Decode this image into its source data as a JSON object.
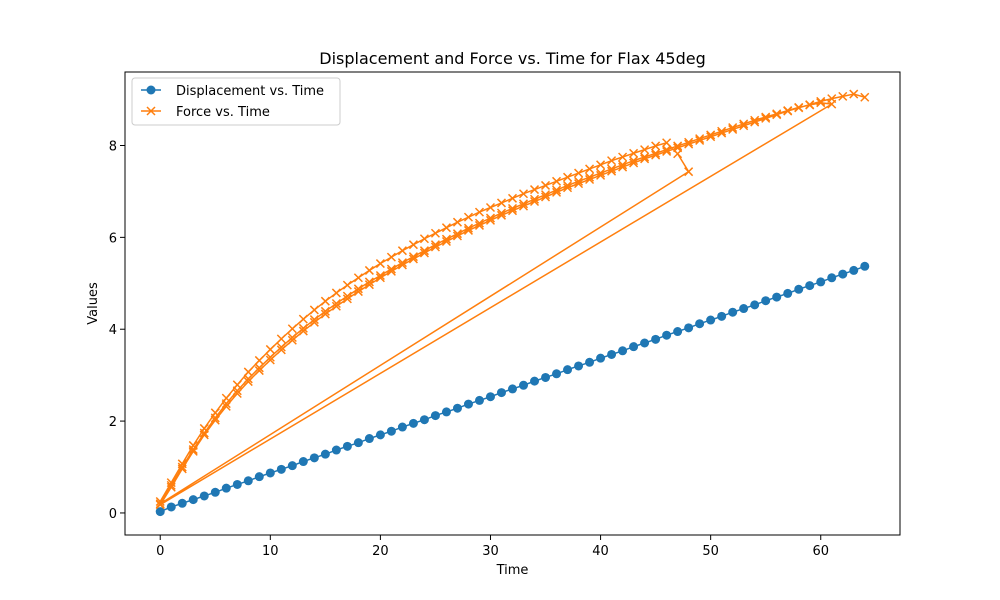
{
  "chart_data": {
    "type": "line",
    "title": "Displacement and Force vs. Time for Flax 45deg",
    "xlabel": "Time",
    "ylabel": "Values",
    "xlim": [
      -3.2,
      67.2
    ],
    "ylim": [
      -0.48,
      9.6
    ],
    "xticks": [
      0,
      10,
      20,
      30,
      40,
      50,
      60
    ],
    "yticks": [
      0,
      2,
      4,
      6,
      8
    ],
    "grid": false,
    "legend_position": "top-left",
    "series": [
      {
        "name": "Displacement vs. Time",
        "color": "#1f77b4",
        "marker": "circle",
        "x": [
          0,
          1,
          2,
          3,
          4,
          5,
          6,
          7,
          8,
          9,
          10,
          11,
          12,
          13,
          14,
          15,
          16,
          17,
          18,
          19,
          20,
          21,
          22,
          23,
          24,
          25,
          26,
          27,
          28,
          29,
          30,
          31,
          32,
          33,
          34,
          35,
          36,
          37,
          38,
          39,
          40,
          41,
          42,
          43,
          44,
          45,
          46,
          47,
          48,
          49,
          50,
          51,
          52,
          53,
          54,
          55,
          56,
          57,
          58,
          59,
          60,
          61,
          62,
          63,
          64
        ],
        "y": [
          0.03,
          0.13,
          0.21,
          0.29,
          0.37,
          0.45,
          0.54,
          0.62,
          0.7,
          0.79,
          0.87,
          0.95,
          1.03,
          1.12,
          1.2,
          1.28,
          1.37,
          1.45,
          1.53,
          1.62,
          1.7,
          1.78,
          1.87,
          1.95,
          2.03,
          2.12,
          2.2,
          2.28,
          2.37,
          2.45,
          2.53,
          2.62,
          2.7,
          2.78,
          2.87,
          2.95,
          3.03,
          3.12,
          3.2,
          3.28,
          3.37,
          3.45,
          3.53,
          3.62,
          3.7,
          3.78,
          3.87,
          3.95,
          4.03,
          4.12,
          4.2,
          4.28,
          4.37,
          4.45,
          4.53,
          4.62,
          4.7,
          4.78,
          4.87,
          4.95,
          5.03,
          5.12,
          5.2,
          5.28,
          5.37
        ]
      },
      {
        "name": "Force vs. Time",
        "color": "#ff7f0e",
        "marker": "x",
        "x": [
          0,
          1,
          2,
          3,
          4,
          5,
          6,
          7,
          8,
          9,
          10,
          11,
          12,
          13,
          14,
          15,
          16,
          17,
          18,
          19,
          20,
          21,
          22,
          23,
          24,
          25,
          26,
          27,
          28,
          29,
          30,
          31,
          32,
          33,
          34,
          35,
          36,
          37,
          38,
          39,
          40,
          41,
          42,
          43,
          44,
          45,
          46,
          47,
          48,
          0,
          1,
          2,
          3,
          4,
          5,
          6,
          7,
          8,
          9,
          10,
          11,
          12,
          13,
          14,
          15,
          16,
          17,
          18,
          19,
          20,
          21,
          22,
          23,
          24,
          25,
          26,
          27,
          28,
          29,
          30,
          31,
          32,
          33,
          34,
          35,
          36,
          37,
          38,
          39,
          40,
          41,
          42,
          43,
          44,
          45,
          46,
          47,
          48,
          49,
          50,
          51,
          52,
          53,
          54,
          55,
          56,
          57,
          58,
          59,
          60,
          61,
          0,
          1,
          2,
          3,
          4,
          5,
          6,
          7,
          8,
          9,
          10,
          11,
          12,
          13,
          14,
          15,
          16,
          17,
          18,
          19,
          20,
          21,
          22,
          23,
          24,
          25,
          26,
          27,
          28,
          29,
          30,
          31,
          32,
          33,
          34,
          35,
          36,
          37,
          38,
          39,
          40,
          41,
          42,
          43,
          44,
          45,
          46,
          47,
          48,
          49,
          50,
          51,
          52,
          53,
          54,
          55,
          56,
          57,
          58,
          59,
          60,
          61,
          62,
          63,
          64
        ],
        "y": [
          0.25,
          0.66,
          1.07,
          1.47,
          1.84,
          2.18,
          2.5,
          2.79,
          3.07,
          3.32,
          3.56,
          3.79,
          4.01,
          4.22,
          4.42,
          4.61,
          4.79,
          4.96,
          5.12,
          5.28,
          5.43,
          5.57,
          5.71,
          5.84,
          5.97,
          6.09,
          6.21,
          6.33,
          6.44,
          6.55,
          6.65,
          6.75,
          6.85,
          6.95,
          7.04,
          7.13,
          7.22,
          7.31,
          7.4,
          7.49,
          7.58,
          7.67,
          7.75,
          7.83,
          7.91,
          7.99,
          8.06,
          7.82,
          7.43,
          0.2,
          0.6,
          1.0,
          1.38,
          1.74,
          2.07,
          2.38,
          2.66,
          2.92,
          3.16,
          3.39,
          3.61,
          3.82,
          4.02,
          4.21,
          4.39,
          4.56,
          4.72,
          4.88,
          5.03,
          5.17,
          5.31,
          5.45,
          5.58,
          5.71,
          5.84,
          5.96,
          6.08,
          6.2,
          6.31,
          6.42,
          6.53,
          6.63,
          6.73,
          6.83,
          6.93,
          7.03,
          7.13,
          7.22,
          7.31,
          7.4,
          7.49,
          7.58,
          7.67,
          7.75,
          7.83,
          7.91,
          7.99,
          8.07,
          8.15,
          8.23,
          8.31,
          8.39,
          8.47,
          8.55,
          8.62,
          8.69,
          8.76,
          8.83,
          8.88,
          8.93,
          8.9,
          0.18,
          0.56,
          0.96,
          1.34,
          1.7,
          2.02,
          2.32,
          2.6,
          2.86,
          3.1,
          3.33,
          3.55,
          3.76,
          3.96,
          4.15,
          4.33,
          4.5,
          4.66,
          4.82,
          4.97,
          5.12,
          5.26,
          5.4,
          5.53,
          5.66,
          5.79,
          5.91,
          6.03,
          6.15,
          6.26,
          6.37,
          6.48,
          6.58,
          6.68,
          6.78,
          6.88,
          6.98,
          7.08,
          7.17,
          7.26,
          7.35,
          7.44,
          7.53,
          7.62,
          7.71,
          7.79,
          7.87,
          7.95,
          8.03,
          8.11,
          8.19,
          8.27,
          8.35,
          8.43,
          8.51,
          8.59,
          8.67,
          8.75,
          8.82,
          8.89,
          8.96,
          9.02,
          9.07,
          9.12,
          9.05
        ]
      }
    ]
  }
}
